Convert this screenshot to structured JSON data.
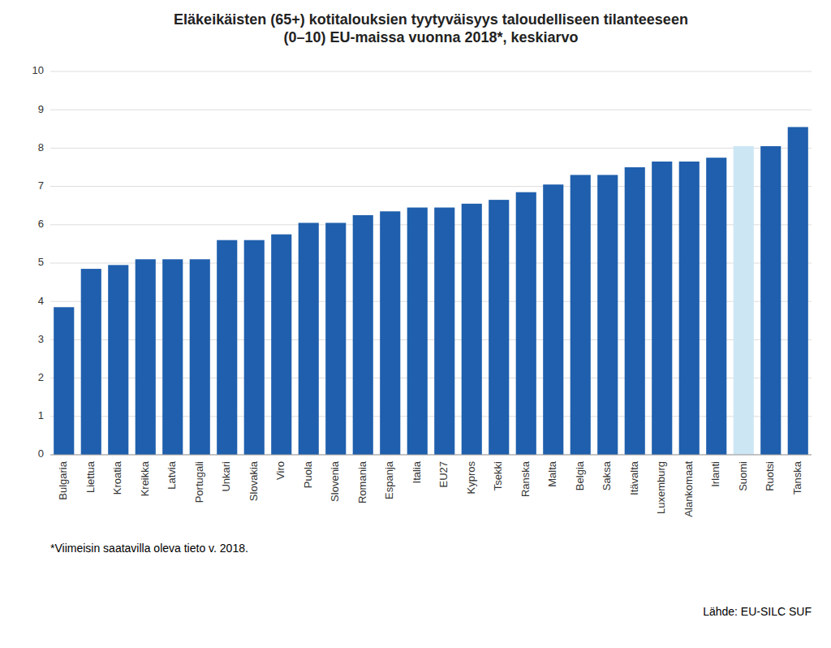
{
  "chart_data": {
    "type": "bar",
    "title": "Eläkeikäisten (65+) kotitalouksien tyytyväisyys taloudelliseen tilanteeseen\n(0–10) EU-maissa vuonna 2018*, keskiarvo",
    "categories": [
      "Bulgaria",
      "Liettua",
      "Kroatia",
      "Kreikka",
      "Latvia",
      "Portugali",
      "Unkari",
      "Slovakia",
      "Viro",
      "Puola",
      "Slovenia",
      "Romania",
      "Espanja",
      "Italia",
      "EU27",
      "Kypros",
      "Tsekki",
      "Ranska",
      "Malta",
      "Belgia",
      "Saksa",
      "Itävalta",
      "Luxemburg",
      "Alankomaat",
      "Irlanti",
      "Suomi",
      "Ruotsi",
      "Tanska"
    ],
    "values": [
      3.85,
      4.85,
      4.95,
      5.1,
      5.1,
      5.1,
      5.6,
      5.6,
      5.75,
      6.05,
      6.05,
      6.25,
      6.35,
      6.45,
      6.45,
      6.55,
      6.65,
      6.85,
      7.05,
      7.3,
      7.3,
      7.5,
      7.65,
      7.65,
      7.75,
      8.05,
      8.05,
      8.55
    ],
    "colors": [
      "#1F5FAD",
      "#1F5FAD",
      "#1F5FAD",
      "#1F5FAD",
      "#1F5FAD",
      "#1F5FAD",
      "#1F5FAD",
      "#1F5FAD",
      "#1F5FAD",
      "#1F5FAD",
      "#1F5FAD",
      "#1F5FAD",
      "#1F5FAD",
      "#1F5FAD",
      "#1F5FAD",
      "#1F5FAD",
      "#1F5FAD",
      "#1F5FAD",
      "#1F5FAD",
      "#1F5FAD",
      "#1F5FAD",
      "#1F5FAD",
      "#1F5FAD",
      "#1F5FAD",
      "#1F5FAD",
      "#cce6f4",
      "#1F5FAD",
      "#1F5FAD"
    ],
    "ylim": [
      0,
      10
    ],
    "yticks": [
      0,
      1,
      2,
      3,
      4,
      5,
      6,
      7,
      8,
      9,
      10
    ],
    "grid": true,
    "annotations": [
      "*Viimeisin saatavilla oleva tieto v. 2018.",
      "Lähde: EU-SILC SUF"
    ]
  }
}
